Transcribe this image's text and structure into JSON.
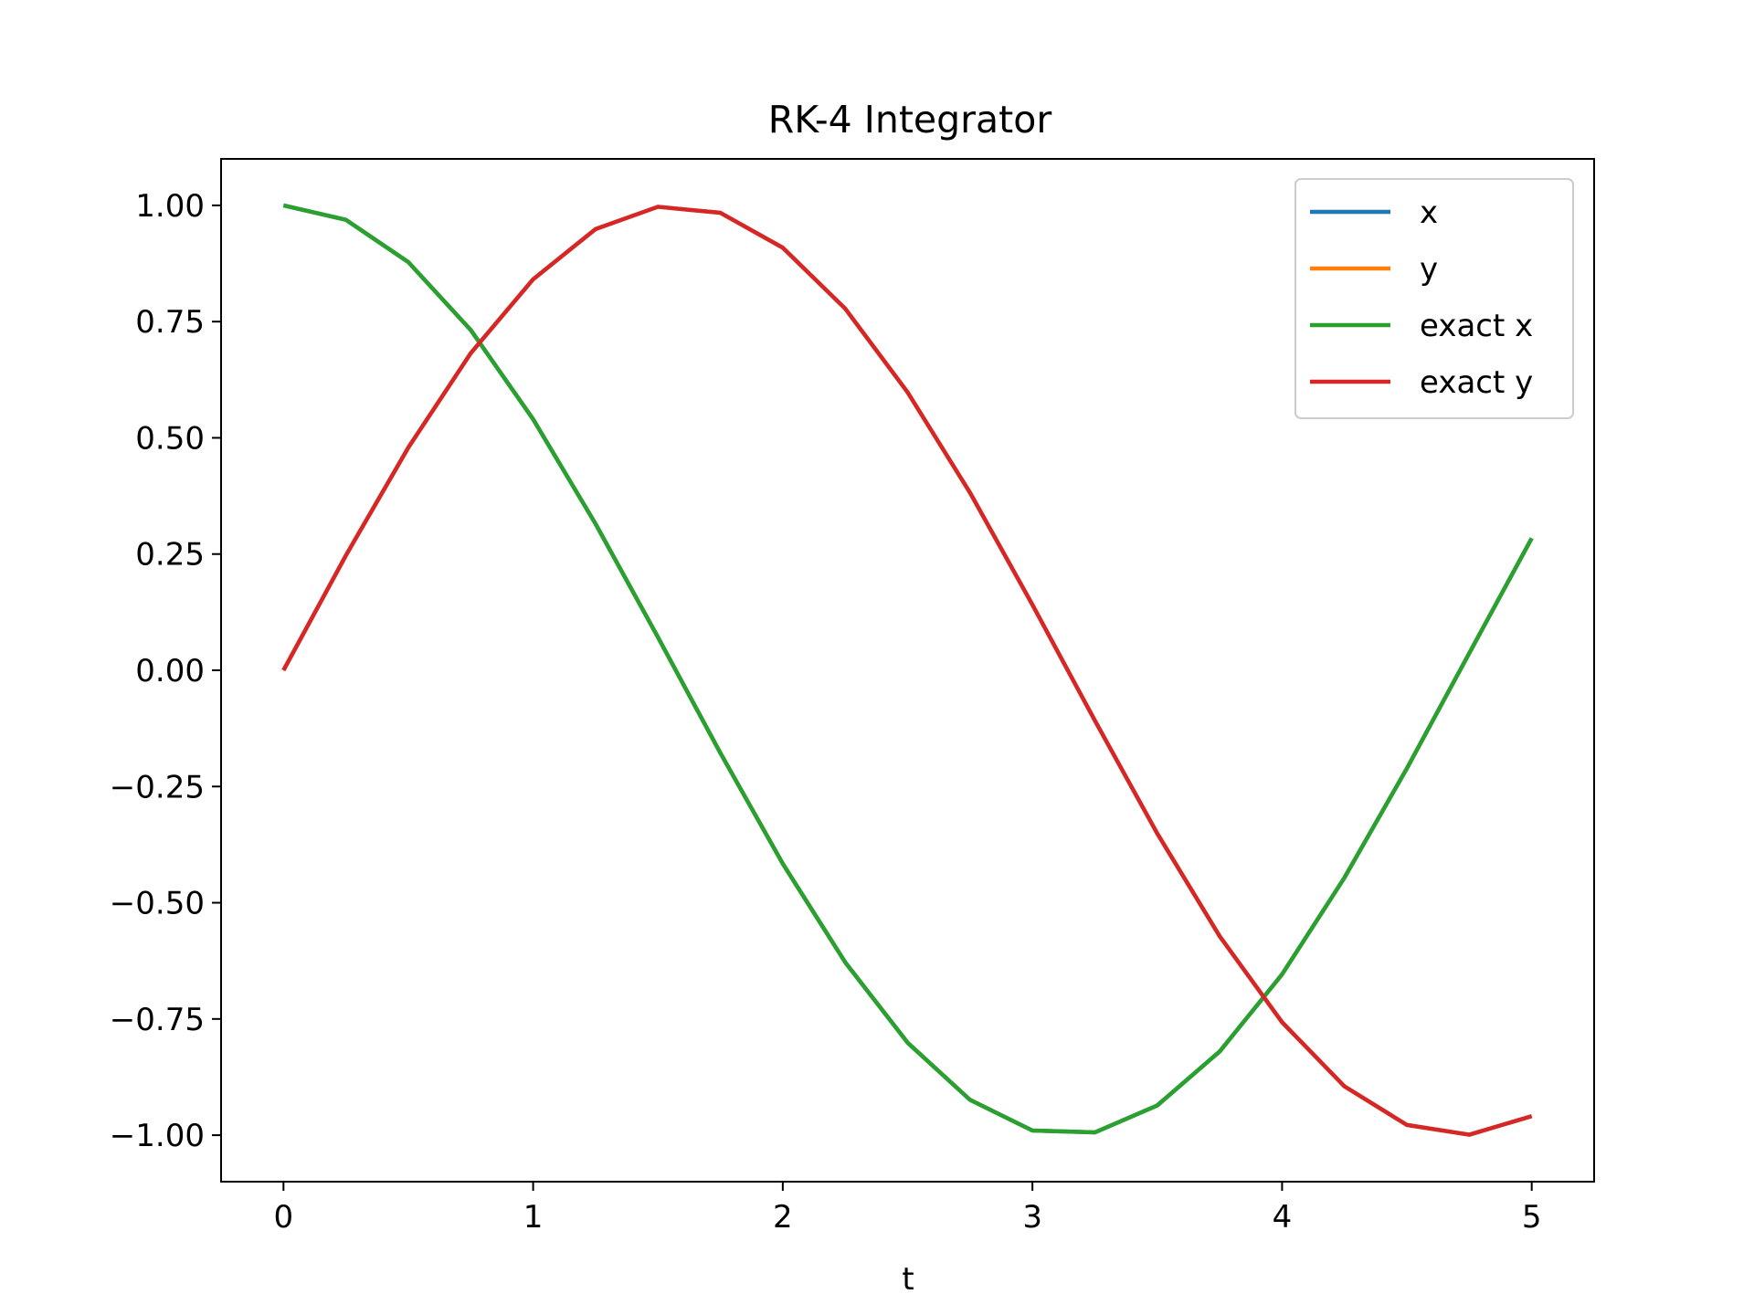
{
  "chart_data": {
    "type": "line",
    "title": "RK-4 Integrator",
    "xlabel": "t",
    "ylabel": "",
    "xlim": [
      -0.25,
      5.25
    ],
    "ylim": [
      -1.1,
      1.1
    ],
    "x_ticks": [
      0,
      1,
      2,
      3,
      4,
      5
    ],
    "x_tick_labels": [
      "0",
      "1",
      "2",
      "3",
      "4",
      "5"
    ],
    "y_ticks": [
      1.0,
      0.75,
      0.5,
      0.25,
      0.0,
      -0.25,
      -0.5,
      -0.75,
      -1.0
    ],
    "y_tick_labels": [
      "1.00",
      "0.75",
      "0.50",
      "0.25",
      "0.00",
      "−0.25",
      "−0.50",
      "−0.75",
      "−1.00"
    ],
    "grid": false,
    "legend_position": "top-right",
    "x": [
      0,
      0.25,
      0.5,
      0.75,
      1,
      1.25,
      1.5,
      1.75,
      2,
      2.25,
      2.5,
      2.75,
      3,
      3.25,
      3.5,
      3.75,
      4,
      4.25,
      4.5,
      4.75,
      5
    ],
    "series": [
      {
        "name": "x",
        "color": "#1f77b4",
        "values": [
          1.0,
          0.969,
          0.878,
          0.732,
          0.54,
          0.315,
          0.071,
          -0.178,
          -0.416,
          -0.628,
          -0.801,
          -0.924,
          -0.99,
          -0.994,
          -0.936,
          -0.82,
          -0.654,
          -0.446,
          -0.211,
          0.037,
          0.284
        ]
      },
      {
        "name": "y",
        "color": "#ff7f0e",
        "values": [
          0.0,
          0.247,
          0.479,
          0.682,
          0.841,
          0.949,
          0.997,
          0.984,
          0.909,
          0.778,
          0.598,
          0.382,
          0.141,
          -0.108,
          -0.351,
          -0.572,
          -0.757,
          -0.895,
          -0.978,
          -0.999,
          -0.959
        ]
      },
      {
        "name": "exact x",
        "color": "#2ca02c",
        "values": [
          1.0,
          0.969,
          0.878,
          0.732,
          0.54,
          0.315,
          0.071,
          -0.178,
          -0.416,
          -0.628,
          -0.801,
          -0.924,
          -0.99,
          -0.994,
          -0.936,
          -0.82,
          -0.654,
          -0.446,
          -0.211,
          0.037,
          0.284
        ]
      },
      {
        "name": "exact y",
        "color": "#d62728",
        "values": [
          0.0,
          0.247,
          0.479,
          0.682,
          0.841,
          0.949,
          0.997,
          0.984,
          0.909,
          0.778,
          0.598,
          0.382,
          0.141,
          -0.108,
          -0.351,
          -0.572,
          -0.757,
          -0.895,
          -0.978,
          -0.999,
          -0.959
        ]
      }
    ]
  }
}
